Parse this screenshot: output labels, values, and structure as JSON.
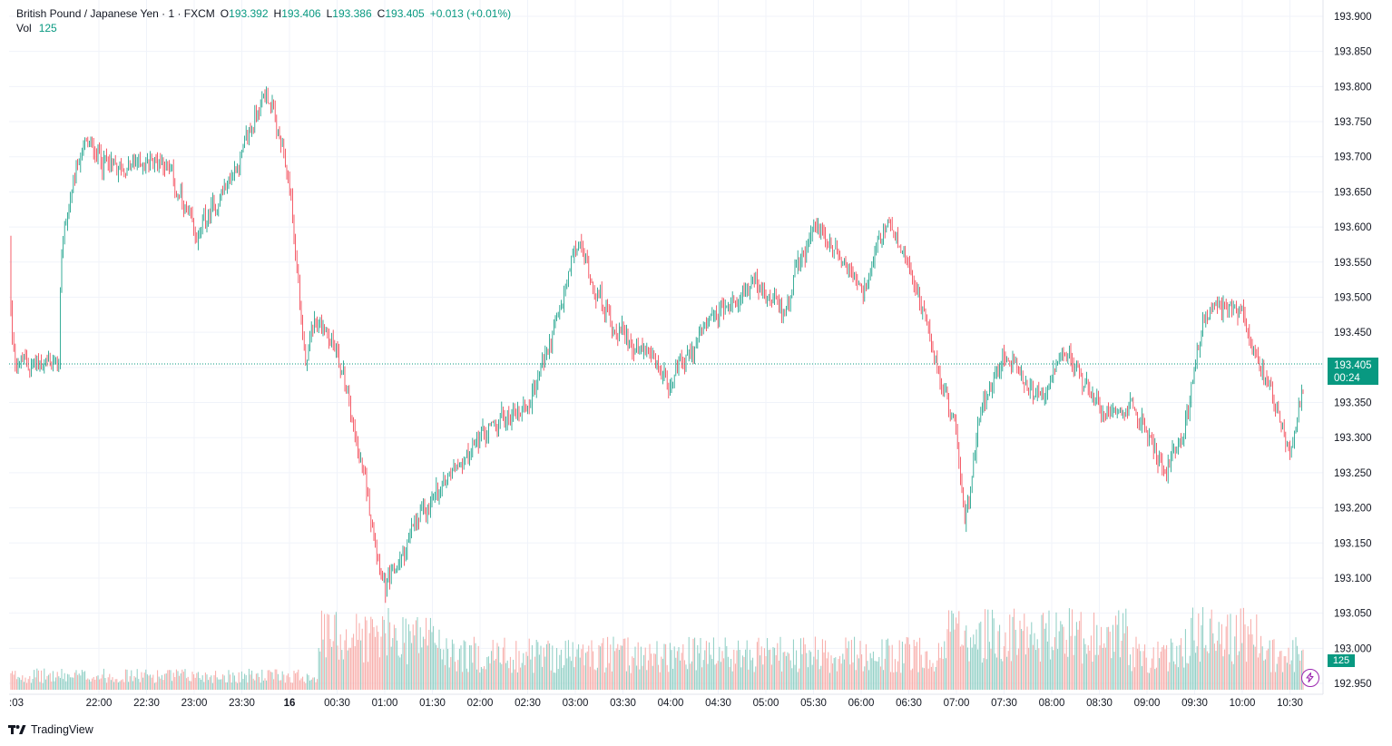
{
  "header": {
    "symbol": "British Pound / Japanese Yen · 1 · FXCM",
    "ohlc": [
      {
        "label": "O",
        "value": "193.392"
      },
      {
        "label": "H",
        "value": "193.406"
      },
      {
        "label": "L",
        "value": "193.386"
      },
      {
        "label": "C",
        "value": "193.405"
      }
    ],
    "change": "+0.013 (+0.01%)",
    "volume_label": "Vol",
    "volume_value": "125"
  },
  "price_tag": {
    "price": "193.405",
    "countdown": "00:24"
  },
  "volume_tag": "125",
  "branding": "TradingView",
  "colors": {
    "up": "#089981",
    "down": "#f23645",
    "vol_up": "#8ccdc3",
    "vol_down": "#f7a9a6",
    "grid": "#f0f3fa",
    "accent_tag": "#089981",
    "bolt": "#9c27b0"
  },
  "chart_data": {
    "type": "candlestick",
    "interval": "1 minute",
    "y_ticks": [
      "193.900",
      "193.850",
      "193.800",
      "193.750",
      "193.700",
      "193.650",
      "193.600",
      "193.550",
      "193.500",
      "193.450",
      "193.400",
      "193.350",
      "193.300",
      "193.250",
      "193.200",
      "193.150",
      "193.100",
      "193.050",
      "193.000",
      "192.950"
    ],
    "ylim": [
      192.95,
      193.9
    ],
    "x_ticks": [
      ":03",
      "22:00",
      "22:30",
      "23:00",
      "23:30",
      "16",
      "00:30",
      "01:00",
      "01:30",
      "02:00",
      "02:30",
      "03:00",
      "03:30",
      "04:00",
      "04:30",
      "05:00",
      "05:30",
      "06:00",
      "06:30",
      "07:00",
      "07:30",
      "08:00",
      "08:30",
      "09:00",
      "09:30",
      "10:00",
      "10:30"
    ],
    "last_price": 193.405,
    "path_hourly_approx": [
      {
        "time": "21:35",
        "price": 193.58
      },
      {
        "time": "21:50",
        "price": 193.72
      },
      {
        "time": "22:10",
        "price": 193.68
      },
      {
        "time": "22:40",
        "price": 193.7
      },
      {
        "time": "23:00",
        "price": 193.58
      },
      {
        "time": "23:25",
        "price": 193.68
      },
      {
        "time": "23:45",
        "price": 193.8
      },
      {
        "time": "00:00",
        "price": 193.65
      },
      {
        "time": "00:10",
        "price": 193.38
      },
      {
        "time": "00:15",
        "price": 193.48
      },
      {
        "time": "00:30",
        "price": 193.42
      },
      {
        "time": "00:50",
        "price": 193.2
      },
      {
        "time": "01:00",
        "price": 193.08
      },
      {
        "time": "01:20",
        "price": 193.18
      },
      {
        "time": "01:40",
        "price": 193.25
      },
      {
        "time": "02:00",
        "price": 193.3
      },
      {
        "time": "02:30",
        "price": 193.35
      },
      {
        "time": "02:50",
        "price": 193.48
      },
      {
        "time": "03:00",
        "price": 193.58
      },
      {
        "time": "03:20",
        "price": 193.47
      },
      {
        "time": "03:50",
        "price": 193.4
      },
      {
        "time": "04:00",
        "price": 193.38
      },
      {
        "time": "04:20",
        "price": 193.45
      },
      {
        "time": "04:50",
        "price": 193.52
      },
      {
        "time": "05:10",
        "price": 193.48
      },
      {
        "time": "05:30",
        "price": 193.6
      },
      {
        "time": "05:50",
        "price": 193.55
      },
      {
        "time": "06:00",
        "price": 193.5
      },
      {
        "time": "06:15",
        "price": 193.6
      },
      {
        "time": "06:30",
        "price": 193.55
      },
      {
        "time": "06:45",
        "price": 193.42
      },
      {
        "time": "07:00",
        "price": 193.3
      },
      {
        "time": "07:05",
        "price": 193.17
      },
      {
        "time": "07:15",
        "price": 193.35
      },
      {
        "time": "07:30",
        "price": 193.42
      },
      {
        "time": "07:50",
        "price": 193.35
      },
      {
        "time": "08:10",
        "price": 193.42
      },
      {
        "time": "08:30",
        "price": 193.34
      },
      {
        "time": "08:50",
        "price": 193.35
      },
      {
        "time": "09:10",
        "price": 193.25
      },
      {
        "time": "09:25",
        "price": 193.33
      },
      {
        "time": "09:35",
        "price": 193.48
      },
      {
        "time": "10:00",
        "price": 193.48
      },
      {
        "time": "10:15",
        "price": 193.38
      },
      {
        "time": "10:30",
        "price": 193.27
      },
      {
        "time": "10:40",
        "price": 193.405
      }
    ]
  }
}
